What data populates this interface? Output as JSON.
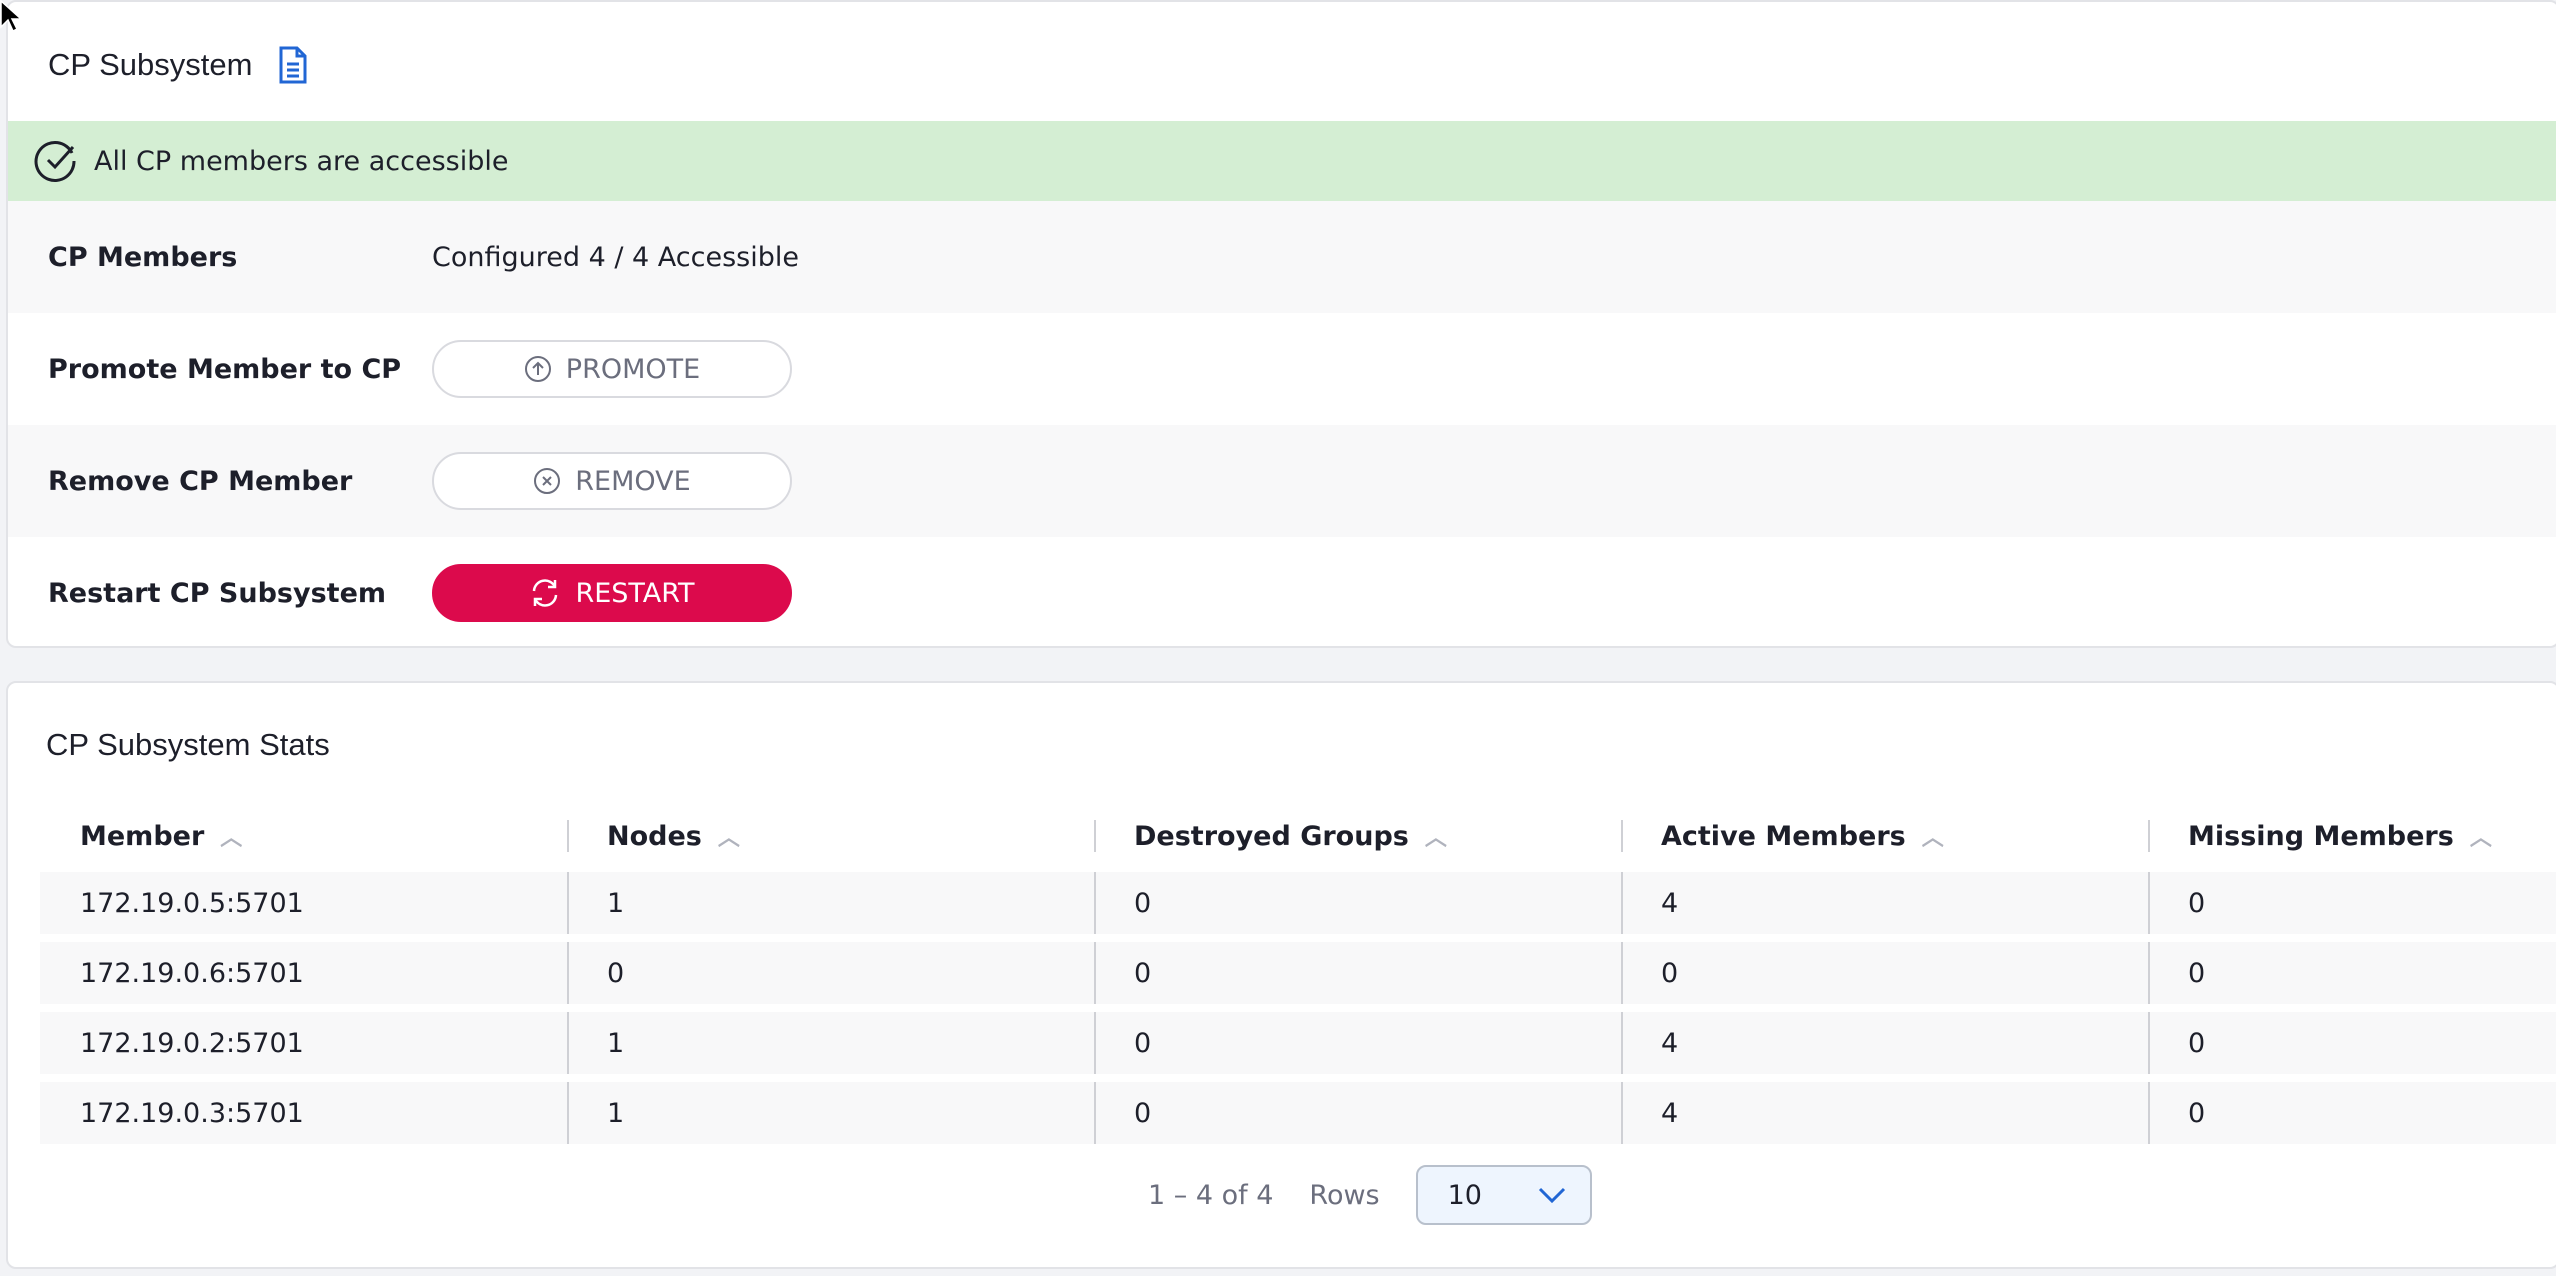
{
  "panel": {
    "title": "CP Subsystem",
    "doc_icon": "document-icon",
    "banner": {
      "text": "All CP members are accessible",
      "icon": "check-circle-icon",
      "color": "#d4eed3"
    },
    "rows": [
      {
        "label": "CP Members",
        "value": "Configured 4 / 4 Accessible"
      },
      {
        "label": "Promote Member to CP",
        "button": "PROMOTE",
        "icon": "arrow-up-circle-icon"
      },
      {
        "label": "Remove CP Member",
        "button": "REMOVE",
        "icon": "x-circle-icon"
      },
      {
        "label": "Restart CP Subsystem",
        "button": "RESTART",
        "icon": "refresh-icon",
        "color": "#dc0a4c"
      }
    ]
  },
  "stats": {
    "title": "CP Subsystem Stats",
    "columns": [
      "Member",
      "Nodes",
      "Destroyed Groups",
      "Active Members",
      "Missing Members"
    ],
    "rows": [
      [
        "172.19.0.5:5701",
        "1",
        "0",
        "4",
        "0"
      ],
      [
        "172.19.0.6:5701",
        "0",
        "0",
        "0",
        "0"
      ],
      [
        "172.19.0.2:5701",
        "1",
        "0",
        "4",
        "0"
      ],
      [
        "172.19.0.3:5701",
        "1",
        "0",
        "4",
        "0"
      ]
    ],
    "pagination": {
      "range": "1 – 4 of 4",
      "rows_label": "Rows",
      "rows_value": "10"
    }
  }
}
